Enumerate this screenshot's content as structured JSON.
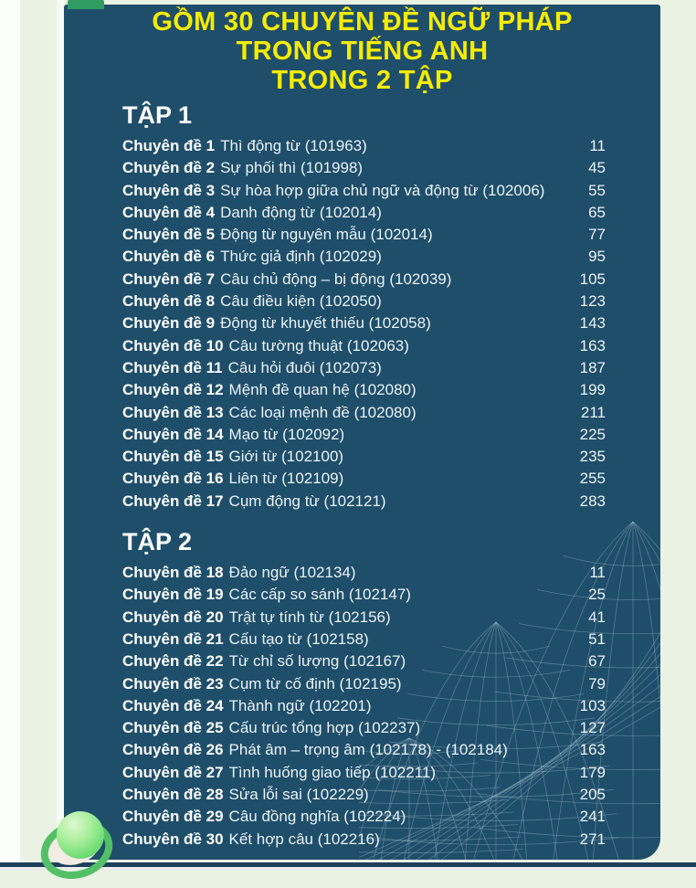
{
  "header": {
    "title_lines": [
      "GỒM 30 CHUYÊN ĐỀ NGỮ PHÁP",
      "TRONG TIẾNG ANH",
      "TRONG 2 TẬP"
    ]
  },
  "sections": [
    {
      "heading": "TẬP 1",
      "entries": [
        {
          "label": "Chuyên đề 1",
          "topic": "Thì động từ (101963)",
          "page": "11"
        },
        {
          "label": "Chuyên đề 2",
          "topic": "Sự phối thì (101998)",
          "page": "45"
        },
        {
          "label": "Chuyên đề 3",
          "topic": "Sự hòa hợp giữa chủ ngữ và động từ (102006)",
          "page": "55"
        },
        {
          "label": "Chuyên đề 4",
          "topic": "Danh động từ (102014)",
          "page": "65"
        },
        {
          "label": "Chuyên đề 5",
          "topic": "Động từ nguyên mẫu (102014)",
          "page": "77"
        },
        {
          "label": "Chuyên đề 6",
          "topic": "Thức giả định (102029)",
          "page": "95"
        },
        {
          "label": "Chuyên đề 7",
          "topic": "Câu chủ động – bị động (102039)",
          "page": "105"
        },
        {
          "label": "Chuyên đề 8",
          "topic": "Câu điều kiện (102050)",
          "page": "123"
        },
        {
          "label": "Chuyên đề 9",
          "topic": "Động từ khuyết thiếu (102058)",
          "page": "143"
        },
        {
          "label": "Chuyên đề 10",
          "topic": "Câu tường thuật (102063)",
          "page": "163"
        },
        {
          "label": "Chuyên đề 11",
          "topic": "Câu hỏi đuôi (102073)",
          "page": "187"
        },
        {
          "label": "Chuyên đề 12",
          "topic": "Mệnh đề quan hệ (102080)",
          "page": "199"
        },
        {
          "label": "Chuyên đề 13",
          "topic": "Các loại mệnh đề (102080)",
          "page": "211"
        },
        {
          "label": "Chuyên đề 14",
          "topic": "Mạo từ (102092)",
          "page": "225"
        },
        {
          "label": "Chuyên đề 15",
          "topic": "Giới từ (102100)",
          "page": "235"
        },
        {
          "label": "Chuyên đề 16",
          "topic": "Liên từ (102109)",
          "page": "255"
        },
        {
          "label": "Chuyên đề 17",
          "topic": "Cụm động từ (102121)",
          "page": "283"
        }
      ]
    },
    {
      "heading": "TẬP 2",
      "entries": [
        {
          "label": "Chuyên đề 18",
          "topic": "Đảo ngữ (102134)",
          "page": "11"
        },
        {
          "label": "Chuyên đề 19",
          "topic": "Các cấp so sánh (102147)",
          "page": "25"
        },
        {
          "label": "Chuyên đề 20",
          "topic": "Trật tự tính từ (102156)",
          "page": "41"
        },
        {
          "label": "Chuyên đề 21",
          "topic": "Cấu tạo từ (102158)",
          "page": "51"
        },
        {
          "label": "Chuyên đề 22",
          "topic": "Từ chỉ số lượng (102167)",
          "page": "67"
        },
        {
          "label": "Chuyên đề 23",
          "topic": "Cụm từ cố định (102195)",
          "page": "79"
        },
        {
          "label": "Chuyên đề 24",
          "topic": "Thành ngữ (102201)",
          "page": "103"
        },
        {
          "label": "Chuyên đề 25",
          "topic": "Cấu trúc tổng hợp (102237)",
          "page": "127"
        },
        {
          "label": "Chuyên đề 26",
          "topic": "Phát âm – trọng âm (102178) - (102184)",
          "page": "163"
        },
        {
          "label": "Chuyên đề 27",
          "topic": "Tình huống giao tiếp (102211)",
          "page": "179"
        },
        {
          "label": "Chuyên đề 28",
          "topic": "Sửa lỗi sai (102229)",
          "page": "205"
        },
        {
          "label": "Chuyên đề 29",
          "topic": "Câu đồng nghĩa (102224)",
          "page": "241"
        },
        {
          "label": "Chuyên đề 30",
          "topic": "Kết hợp câu (102216)",
          "page": "271"
        }
      ]
    }
  ],
  "colors": {
    "panel_background": "#1f4e6a",
    "title_yellow": "#f7ec00",
    "body_text": "#e9f3f7",
    "page_margin_green": "#e9f2e3",
    "tab_green": "#2f9c62",
    "sphere_green": "#6cdb72",
    "ring_green": "#53c068",
    "footer_line_navy": "#1d3f5c",
    "wave_line": "#bcd8e4"
  },
  "decorations": {
    "tab": "green-bookmark-tab",
    "waves": "wireframe-wave-mesh",
    "sphere": "green-sphere-with-ring",
    "footer": "navy-divider-line"
  }
}
